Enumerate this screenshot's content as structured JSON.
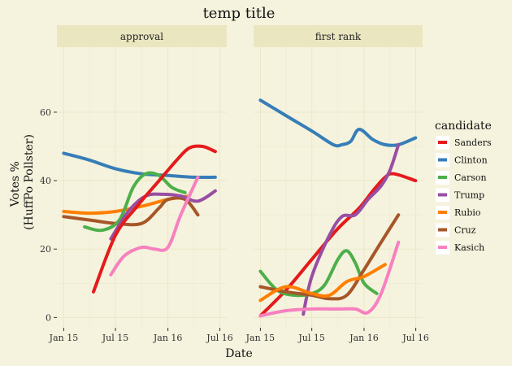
{
  "chart_data": {
    "type": "line",
    "title": "temp title",
    "xlabel": "Date",
    "ylabel": [
      "Votes %",
      "(HuffPo Pollster)"
    ],
    "x_ticks": [
      "Jan 15",
      "Jul 15",
      "Jan 16",
      "Jul 16"
    ],
    "x_tick_dates": [
      "2015-01-01",
      "2015-07-01",
      "2016-01-01",
      "2016-07-01"
    ],
    "x_range": [
      "2014-12-08",
      "2016-07-25"
    ],
    "y_ticks": [
      0,
      20,
      40,
      60
    ],
    "ylim": [
      -3,
      79
    ],
    "grid": true,
    "legend": {
      "title": "candidate",
      "position": "right"
    },
    "colors": {
      "Sanders": "#e41a1c",
      "Clinton": "#377eb8",
      "Carson": "#4daf4a",
      "Trump": "#984ea3",
      "Rubio": "#ff7f00",
      "Cruz": "#a65628",
      "Kasich": "#f781bf",
      "background": "#f5f3dd",
      "strip": "#eae6c0",
      "gridline": "#ebe7c9"
    },
    "panels": [
      {
        "name": "approval",
        "series": [
          {
            "name": "Clinton",
            "x": [
              "2015-01-01",
              "2015-04-01",
              "2015-07-01",
              "2015-10-01",
              "2016-01-01",
              "2016-04-01",
              "2016-06-15"
            ],
            "y": [
              48,
              46,
              43.5,
              42,
              41.5,
              41,
              41
            ]
          },
          {
            "name": "Rubio",
            "x": [
              "2015-01-01",
              "2015-04-01",
              "2015-07-01",
              "2015-10-01",
              "2016-01-01",
              "2016-03-15"
            ],
            "y": [
              31,
              30.5,
              31,
              32.5,
              34.5,
              35.5
            ]
          },
          {
            "name": "Cruz",
            "x": [
              "2015-01-01",
              "2015-04-01",
              "2015-07-01",
              "2015-10-01",
              "2015-12-01",
              "2016-01-01",
              "2016-03-01",
              "2016-04-15"
            ],
            "y": [
              29.5,
              28.5,
              27.5,
              27.5,
              32,
              34.5,
              34.5,
              30
            ]
          },
          {
            "name": "Carson",
            "x": [
              "2015-03-15",
              "2015-05-15",
              "2015-07-15",
              "2015-09-01",
              "2015-10-15",
              "2015-12-01",
              "2016-01-15",
              "2016-03-01"
            ],
            "y": [
              26.5,
              25.5,
              28.5,
              38,
              42,
              41.5,
              38,
              36.5
            ]
          },
          {
            "name": "Trump",
            "x": [
              "2015-06-15",
              "2015-08-15",
              "2015-10-15",
              "2015-12-15",
              "2016-02-15",
              "2016-04-15",
              "2016-06-15"
            ],
            "y": [
              23,
              31,
              35.5,
              36,
              35.5,
              34,
              37
            ]
          },
          {
            "name": "Sanders",
            "x": [
              "2015-04-15",
              "2015-07-01",
              "2015-09-15",
              "2015-12-01",
              "2016-02-01",
              "2016-03-15",
              "2016-05-01",
              "2016-06-15"
            ],
            "y": [
              7.5,
              24,
              32.5,
              40,
              46,
              49.5,
              50,
              48.5
            ]
          },
          {
            "name": "Kasich",
            "x": [
              "2015-06-15",
              "2015-08-01",
              "2015-10-01",
              "2015-11-15",
              "2016-01-01",
              "2016-02-15",
              "2016-04-15"
            ],
            "y": [
              12.5,
              18,
              20.5,
              20,
              20.5,
              30,
              41
            ]
          }
        ]
      },
      {
        "name": "first rank",
        "series": [
          {
            "name": "Clinton",
            "x": [
              "2015-01-01",
              "2015-04-01",
              "2015-07-01",
              "2015-09-15",
              "2015-10-15",
              "2015-11-15",
              "2015-12-15",
              "2016-02-01",
              "2016-03-15",
              "2016-05-01",
              "2016-06-30"
            ],
            "y": [
              63.5,
              59,
              54.5,
              50.5,
              50.5,
              51.5,
              55,
              52,
              50.5,
              50.5,
              52.5
            ]
          },
          {
            "name": "Sanders",
            "x": [
              "2015-01-01",
              "2015-04-01",
              "2015-07-01",
              "2015-10-01",
              "2015-12-15",
              "2016-02-01",
              "2016-03-15",
              "2016-04-15",
              "2016-06-30"
            ],
            "y": [
              0.5,
              8,
              17,
              26,
              32,
              37,
              41,
              42,
              40
            ]
          },
          {
            "name": "Trump",
            "x": [
              "2015-06-01",
              "2015-07-01",
              "2015-09-01",
              "2015-10-15",
              "2015-12-01",
              "2016-01-15",
              "2016-03-01",
              "2016-04-01",
              "2016-05-01"
            ],
            "y": [
              1,
              12,
              24,
              29.5,
              30,
              34.5,
              38.5,
              43,
              50.5
            ]
          },
          {
            "name": "Carson",
            "x": [
              "2015-01-01",
              "2015-03-01",
              "2015-05-01",
              "2015-07-01",
              "2015-08-15",
              "2015-10-01",
              "2015-11-01",
              "2015-12-01",
              "2016-01-01",
              "2016-02-15"
            ],
            "y": [
              13.5,
              8,
              6.5,
              7,
              9.5,
              17,
              19.5,
              16,
              10,
              7
            ]
          },
          {
            "name": "Cruz",
            "x": [
              "2015-01-01",
              "2015-04-01",
              "2015-07-01",
              "2015-09-01",
              "2015-11-01",
              "2016-01-01",
              "2016-03-01",
              "2016-05-01"
            ],
            "y": [
              9,
              7.5,
              6.5,
              5.5,
              6.5,
              14,
              22,
              30
            ]
          },
          {
            "name": "Rubio",
            "x": [
              "2015-01-01",
              "2015-04-01",
              "2015-07-01",
              "2015-09-01",
              "2015-11-01",
              "2016-01-01",
              "2016-03-15"
            ],
            "y": [
              5,
              9,
              7,
              6.5,
              10.5,
              12,
              15.5
            ]
          },
          {
            "name": "Kasich",
            "x": [
              "2015-01-01",
              "2015-04-01",
              "2015-07-01",
              "2015-10-01",
              "2015-12-01",
              "2016-01-15",
              "2016-03-01",
              "2016-05-01"
            ],
            "y": [
              0.5,
              2,
              2.5,
              2.5,
              2.5,
              1.5,
              7,
              22
            ]
          }
        ]
      }
    ]
  }
}
